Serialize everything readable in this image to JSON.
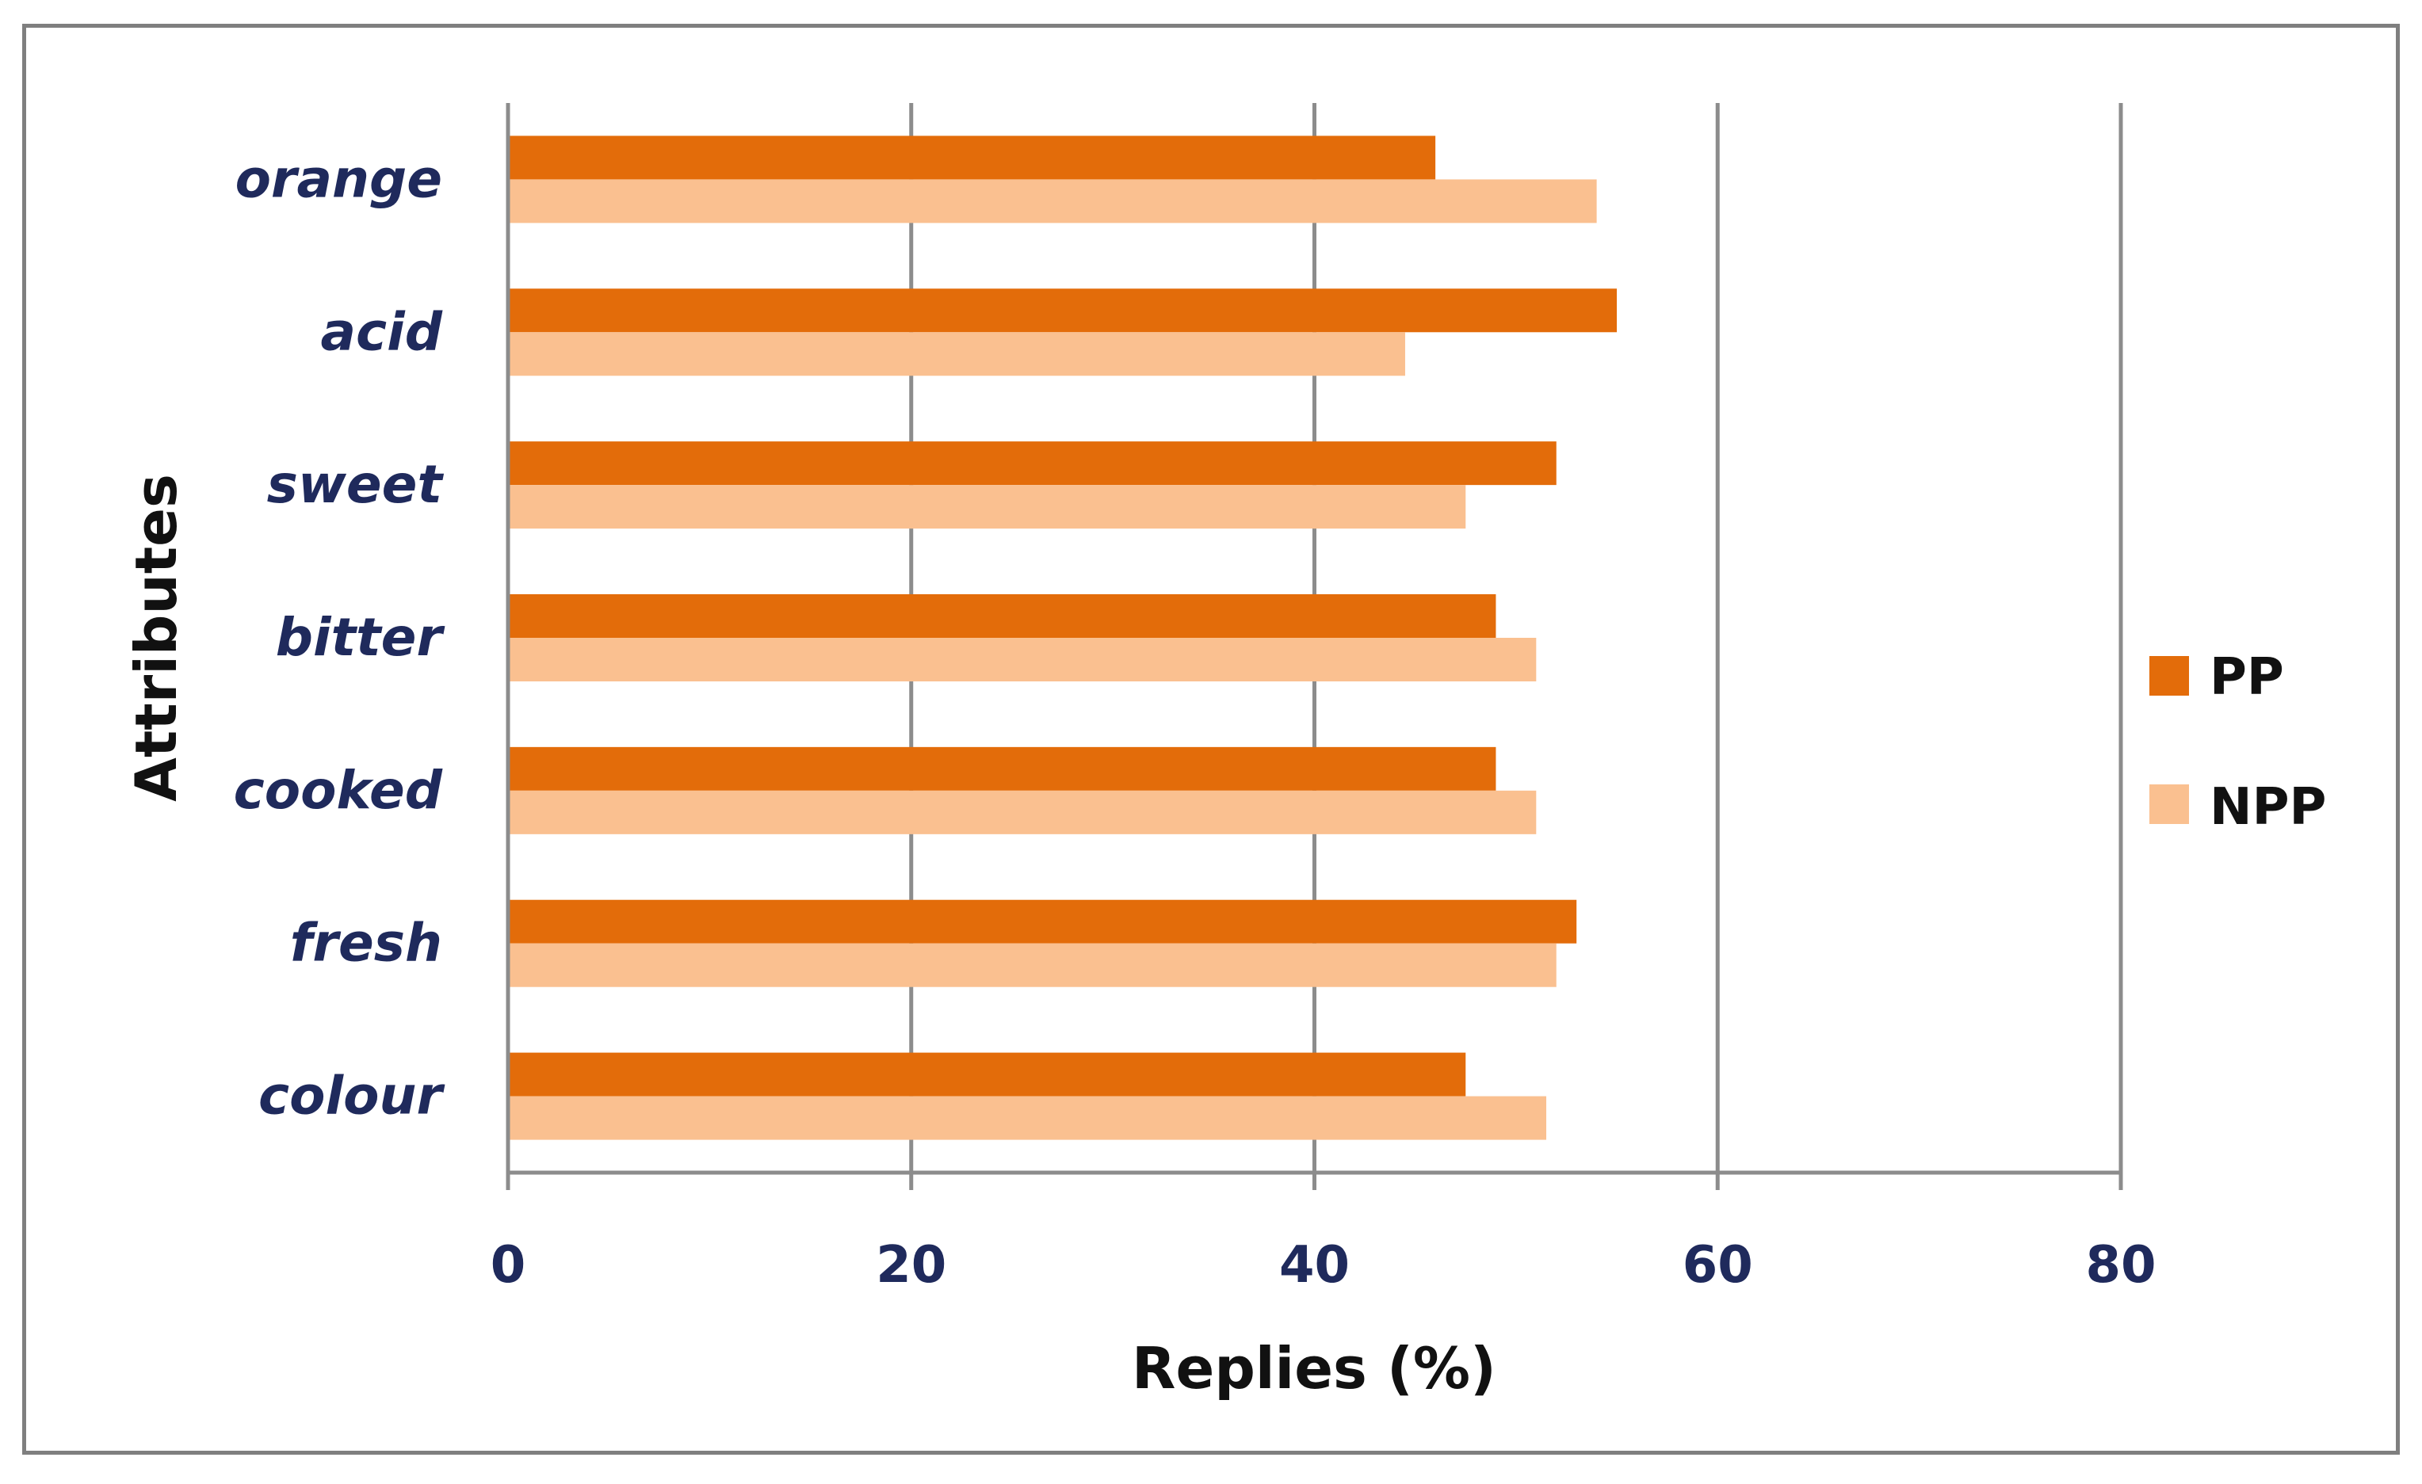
{
  "chart_data": {
    "type": "bar",
    "orientation": "horizontal",
    "title": "",
    "xlabel": "Replies (%)",
    "ylabel": "Attributes",
    "categories": [
      "orange",
      "acid",
      "sweet",
      "bitter",
      "cooked",
      "fresh",
      "colour"
    ],
    "series": [
      {
        "name": "PP",
        "color": "#e36c0a",
        "values": [
          46,
          55,
          52,
          49,
          49,
          53,
          47.5
        ]
      },
      {
        "name": "NPP",
        "color": "#fac090",
        "values": [
          54,
          44.5,
          47.5,
          51,
          51,
          52,
          51.5
        ]
      }
    ],
    "xlim": [
      0,
      80
    ],
    "xticks": [
      "0",
      "20",
      "40",
      "60",
      "80"
    ],
    "grid": "vertical",
    "legend": "right"
  }
}
